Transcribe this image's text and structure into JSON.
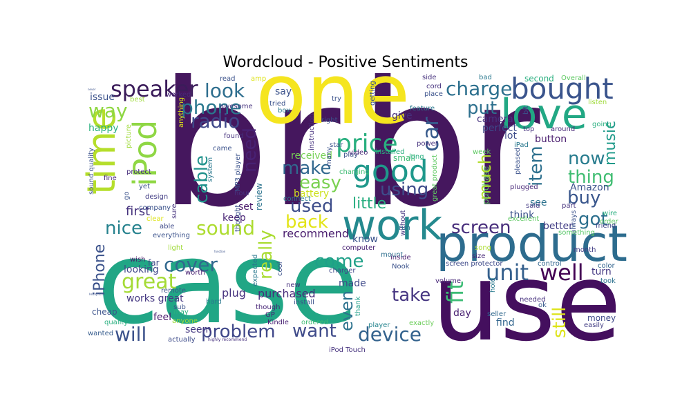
{
  "chart_data": {
    "type": "wordcloud",
    "title": "Wordcloud - Positive Sentiments",
    "colormap": "viridis",
    "background": "#ffffff",
    "words": [
      {
        "text": "br",
        "color": "#45175e"
      },
      {
        "text": "br",
        "color": "#45175e"
      },
      {
        "text": "case",
        "color": "#21a685"
      },
      {
        "text": "use",
        "color": "#440f5e"
      },
      {
        "text": "one",
        "color": "#f5e51f"
      },
      {
        "text": "product",
        "color": "#2d6c8e"
      },
      {
        "text": "work",
        "color": "#24898e"
      },
      {
        "text": "good",
        "color": "#1f988b"
      },
      {
        "text": "love",
        "color": "#22a884"
      },
      {
        "text": "bought",
        "color": "#3a548c"
      },
      {
        "text": "time",
        "color": "#b5de2b"
      },
      {
        "text": "iPod",
        "color": "#8fd744"
      },
      {
        "text": "price",
        "color": "#29af7f"
      },
      {
        "text": "speaker",
        "color": "#3b1c5a"
      },
      {
        "text": "cover",
        "color": "#31688e"
      },
      {
        "text": "problem",
        "color": "#3f4789"
      },
      {
        "text": "unit",
        "color": "#35608d"
      },
      {
        "text": "great",
        "color": "#a5db36"
      },
      {
        "text": "will",
        "color": "#3b528b"
      },
      {
        "text": "device",
        "color": "#33628d"
      },
      {
        "text": "sound",
        "color": "#addc30"
      },
      {
        "text": "iPhone",
        "color": "#3b528b"
      },
      {
        "text": "car",
        "color": "#375a8c"
      },
      {
        "text": "fit",
        "color": "#3cbc75"
      },
      {
        "text": "well",
        "color": "#440154"
      },
      {
        "text": "phone",
        "color": "#2a788e"
      },
      {
        "text": "look",
        "color": "#2e6e8e"
      },
      {
        "text": "charge",
        "color": "#2d708e"
      },
      {
        "text": "radio",
        "color": "#3f4889"
      },
      {
        "text": "way",
        "color": "#8fd744"
      },
      {
        "text": "need",
        "color": "#482173"
      },
      {
        "text": "cable",
        "color": "#20928c"
      },
      {
        "text": "easy",
        "color": "#7ad151"
      },
      {
        "text": "make",
        "color": "#31688e"
      },
      {
        "text": "using",
        "color": "#3e4c8a"
      },
      {
        "text": "used",
        "color": "#3d4d8a"
      },
      {
        "text": "little",
        "color": "#28ae80"
      },
      {
        "text": "back",
        "color": "#e2e418"
      },
      {
        "text": "really",
        "color": "#aadc32"
      },
      {
        "text": "come",
        "color": "#1fa088"
      },
      {
        "text": "even",
        "color": "#2c728e"
      },
      {
        "text": "want",
        "color": "#3e4a89"
      },
      {
        "text": "take",
        "color": "#453581"
      },
      {
        "text": "screen",
        "color": "#472d7b"
      },
      {
        "text": "put",
        "color": "#2d708e"
      },
      {
        "text": "much",
        "color": "#b2dd2d"
      },
      {
        "text": "item",
        "color": "#2d708e"
      },
      {
        "text": "thing",
        "color": "#40bd72"
      },
      {
        "text": "now",
        "color": "#287c8e"
      },
      {
        "text": "buy",
        "color": "#39568c"
      },
      {
        "text": "got",
        "color": "#2d708e"
      },
      {
        "text": "still",
        "color": "#dde318"
      },
      {
        "text": "music",
        "color": "#1f9a8a"
      },
      {
        "text": "nice",
        "color": "#26828e"
      },
      {
        "text": "first",
        "color": "#46337e"
      },
      {
        "text": "recommend",
        "color": "#481b6d"
      },
      {
        "text": "purchased",
        "color": "#472c7a"
      },
      {
        "text": "plug",
        "color": "#46327e"
      },
      {
        "text": "works great",
        "color": "#453882"
      },
      {
        "text": "looking",
        "color": "#3f4788"
      },
      {
        "text": "day",
        "color": "#482071"
      },
      {
        "text": "find",
        "color": "#32658e"
      },
      {
        "text": "made",
        "color": "#3e4989"
      },
      {
        "text": "know",
        "color": "#3a538b"
      },
      {
        "text": "keep",
        "color": "#482475"
      },
      {
        "text": "set",
        "color": "#48186a"
      },
      {
        "text": "review",
        "color": "#2c738e"
      },
      {
        "text": "battery",
        "color": "#cde11d"
      },
      {
        "text": "received",
        "color": "#75d054"
      },
      {
        "text": "happy",
        "color": "#29af7f"
      },
      {
        "text": "issue",
        "color": "#3b528b"
      },
      {
        "text": "say",
        "color": "#3b528b"
      },
      {
        "text": "give",
        "color": "#462f7c"
      },
      {
        "text": "perfect",
        "color": "#3e4a89"
      },
      {
        "text": "camera",
        "color": "#46337e"
      },
      {
        "text": "lot",
        "color": "#3e4c8a"
      },
      {
        "text": "Amazon",
        "color": "#3b528b"
      },
      {
        "text": "button",
        "color": "#481b6d"
      },
      {
        "text": "better",
        "color": "#433e85"
      },
      {
        "text": "think",
        "color": "#3b528b"
      },
      {
        "text": "turn",
        "color": "#443983"
      },
      {
        "text": "purchase",
        "color": "#5ec962"
      },
      {
        "text": "see",
        "color": "#2c728e"
      },
      {
        "text": "said",
        "color": "#443a83"
      },
      {
        "text": "feel",
        "color": "#48186a"
      },
      {
        "text": "seem",
        "color": "#453882"
      },
      {
        "text": "cheap",
        "color": "#3b528b"
      },
      {
        "text": "quality",
        "color": "#29af7f"
      },
      {
        "text": "wanted",
        "color": "#365c8d"
      },
      {
        "text": "actually",
        "color": "#3e4c8a"
      },
      {
        "text": "hard",
        "color": "#2a788e"
      },
      {
        "text": "install",
        "color": "#3b528b"
      },
      {
        "text": "though",
        "color": "#482677"
      },
      {
        "text": "Kindle",
        "color": "#482173"
      },
      {
        "text": "ordered",
        "color": "#3fbc73"
      },
      {
        "text": "player",
        "color": "#25848e"
      },
      {
        "text": "exactly",
        "color": "#6ccd5a"
      },
      {
        "text": "money",
        "color": "#3e4989"
      },
      {
        "text": "easily",
        "color": "#433e85"
      },
      {
        "text": "needed",
        "color": "#46307e"
      },
      {
        "text": "seller",
        "color": "#31688e"
      },
      {
        "text": "ok",
        "color": "#38598c"
      },
      {
        "text": "hold",
        "color": "#297a8e"
      },
      {
        "text": "took",
        "color": "#2c718e"
      },
      {
        "text": "color",
        "color": "#32658e"
      },
      {
        "text": "month",
        "color": "#433e85"
      },
      {
        "text": "control",
        "color": "#32658e"
      },
      {
        "text": "screen protector",
        "color": "#3e4a89"
      },
      {
        "text": "volume",
        "color": "#482878"
      },
      {
        "text": "song",
        "color": "#addc30"
      },
      {
        "text": "size",
        "color": "#482878"
      },
      {
        "text": "friend",
        "color": "#404688"
      },
      {
        "text": "always",
        "color": "#3b528b"
      },
      {
        "text": "something",
        "color": "#56c667"
      },
      {
        "text": "inside",
        "color": "#481a6c"
      },
      {
        "text": "Nook",
        "color": "#3b528b"
      },
      {
        "text": "mount",
        "color": "#2e6f8e"
      },
      {
        "text": "without",
        "color": "#453781"
      },
      {
        "text": "computer",
        "color": "#482173"
      },
      {
        "text": "charger",
        "color": "#3f4889"
      },
      {
        "text": "thank",
        "color": "#1f9e89"
      },
      {
        "text": "new",
        "color": "#46307e"
      },
      {
        "text": "run",
        "color": "#2c728e"
      },
      {
        "text": "everything",
        "color": "#3b528b"
      },
      {
        "text": "able",
        "color": "#3e4989"
      },
      {
        "text": "light",
        "color": "#a0da39"
      },
      {
        "text": "wish",
        "color": "#48186a"
      },
      {
        "text": "far",
        "color": "#3e4a89"
      },
      {
        "text": "worth",
        "color": "#482071"
      },
      {
        "text": "remote",
        "color": "#3b528b"
      },
      {
        "text": "sub",
        "color": "#3b528b"
      },
      {
        "text": "may",
        "color": "#29af7f"
      },
      {
        "text": "anyone",
        "color": "#9fda3a"
      },
      {
        "text": "GP",
        "color": "#482475"
      },
      {
        "text": "iPod Touch",
        "color": "#46327e"
      },
      {
        "text": "highly recommend",
        "color": "#46307e"
      },
      {
        "text": "sound quality",
        "color": "#3b528b"
      },
      {
        "text": "protect",
        "color": "#472d7b"
      },
      {
        "text": "yet",
        "color": "#3a538b"
      },
      {
        "text": "design",
        "color": "#433e85"
      },
      {
        "text": "go",
        "color": "#3b528b"
      },
      {
        "text": "company",
        "color": "#3b528b"
      },
      {
        "text": "fine",
        "color": "#482677"
      },
      {
        "text": "clear",
        "color": "#dde318"
      },
      {
        "text": "picture",
        "color": "#9fda3a"
      },
      {
        "text": "MP3 player",
        "color": "#3b528b"
      },
      {
        "text": "system",
        "color": "#2a788e"
      },
      {
        "text": "hour",
        "color": "#46327e"
      },
      {
        "text": "connect",
        "color": "#2a788e"
      },
      {
        "text": "charging",
        "color": "#3fbc73"
      },
      {
        "text": "many",
        "color": "#3b528b"
      },
      {
        "text": "play",
        "color": "#3b528b"
      },
      {
        "text": "small",
        "color": "#3fbc73"
      },
      {
        "text": "long",
        "color": "#29af7f"
      },
      {
        "text": "week",
        "color": "#5ec962"
      },
      {
        "text": "great product",
        "color": "#5ec962"
      },
      {
        "text": "plugged",
        "color": "#482878"
      },
      {
        "text": "pleased",
        "color": "#3b528b"
      },
      {
        "text": "iPad",
        "color": "#2a788e"
      },
      {
        "text": "part",
        "color": "#46327e"
      },
      {
        "text": "order",
        "color": "#5ec962"
      },
      {
        "text": "wire",
        "color": "#29af7f"
      },
      {
        "text": "excellent",
        "color": "#5ec962"
      },
      {
        "text": "power",
        "color": "#46327e"
      },
      {
        "text": "installed",
        "color": "#29af7f"
      },
      {
        "text": "star",
        "color": "#3b528b"
      },
      {
        "text": "video",
        "color": "#482878"
      },
      {
        "text": "right",
        "color": "#3b528b"
      },
      {
        "text": "instruction",
        "color": "#46327e"
      },
      {
        "text": "getting",
        "color": "#3b528b"
      },
      {
        "text": "came",
        "color": "#3b528b"
      },
      {
        "text": "found",
        "color": "#46327e"
      },
      {
        "text": "tried",
        "color": "#3b528b"
      },
      {
        "text": "box",
        "color": "#2a788e"
      },
      {
        "text": "try",
        "color": "#3b528b"
      },
      {
        "text": "worked",
        "color": "#482878"
      },
      {
        "text": "awesome",
        "color": "#46327e"
      },
      {
        "text": "anything",
        "color": "#dde318"
      },
      {
        "text": "best",
        "color": "#9fda3a"
      },
      {
        "text": "amp",
        "color": "#dde318"
      },
      {
        "text": "read",
        "color": "#3b528b"
      },
      {
        "text": "side",
        "color": "#46327e"
      },
      {
        "text": "cord",
        "color": "#46327e"
      },
      {
        "text": "place",
        "color": "#3b528b"
      },
      {
        "text": "feature",
        "color": "#2a788e"
      },
      {
        "text": "bit",
        "color": "#3b528b"
      },
      {
        "text": "bad",
        "color": "#2a788e"
      },
      {
        "text": "second",
        "color": "#29af7f"
      },
      {
        "text": "Overall",
        "color": "#5ec962"
      },
      {
        "text": "listen",
        "color": "#9fda3a"
      },
      {
        "text": "going",
        "color": "#29af7f"
      },
      {
        "text": "top",
        "color": "#46327e"
      },
      {
        "text": "around",
        "color": "#482878"
      },
      {
        "text": "never",
        "color": "#3b528b"
      },
      {
        "text": "headphone",
        "color": "#3b528b"
      },
      {
        "text": "function",
        "color": "#3b528b"
      },
      {
        "text": "cool",
        "color": "#3b528b"
      },
      {
        "text": "expected",
        "color": "#2a788e"
      },
      {
        "text": "thought",
        "color": "#3b528b"
      },
      {
        "text": "sure",
        "color": "#46327e"
      },
      {
        "text": "two",
        "color": "#9fda3a"
      }
    ]
  }
}
